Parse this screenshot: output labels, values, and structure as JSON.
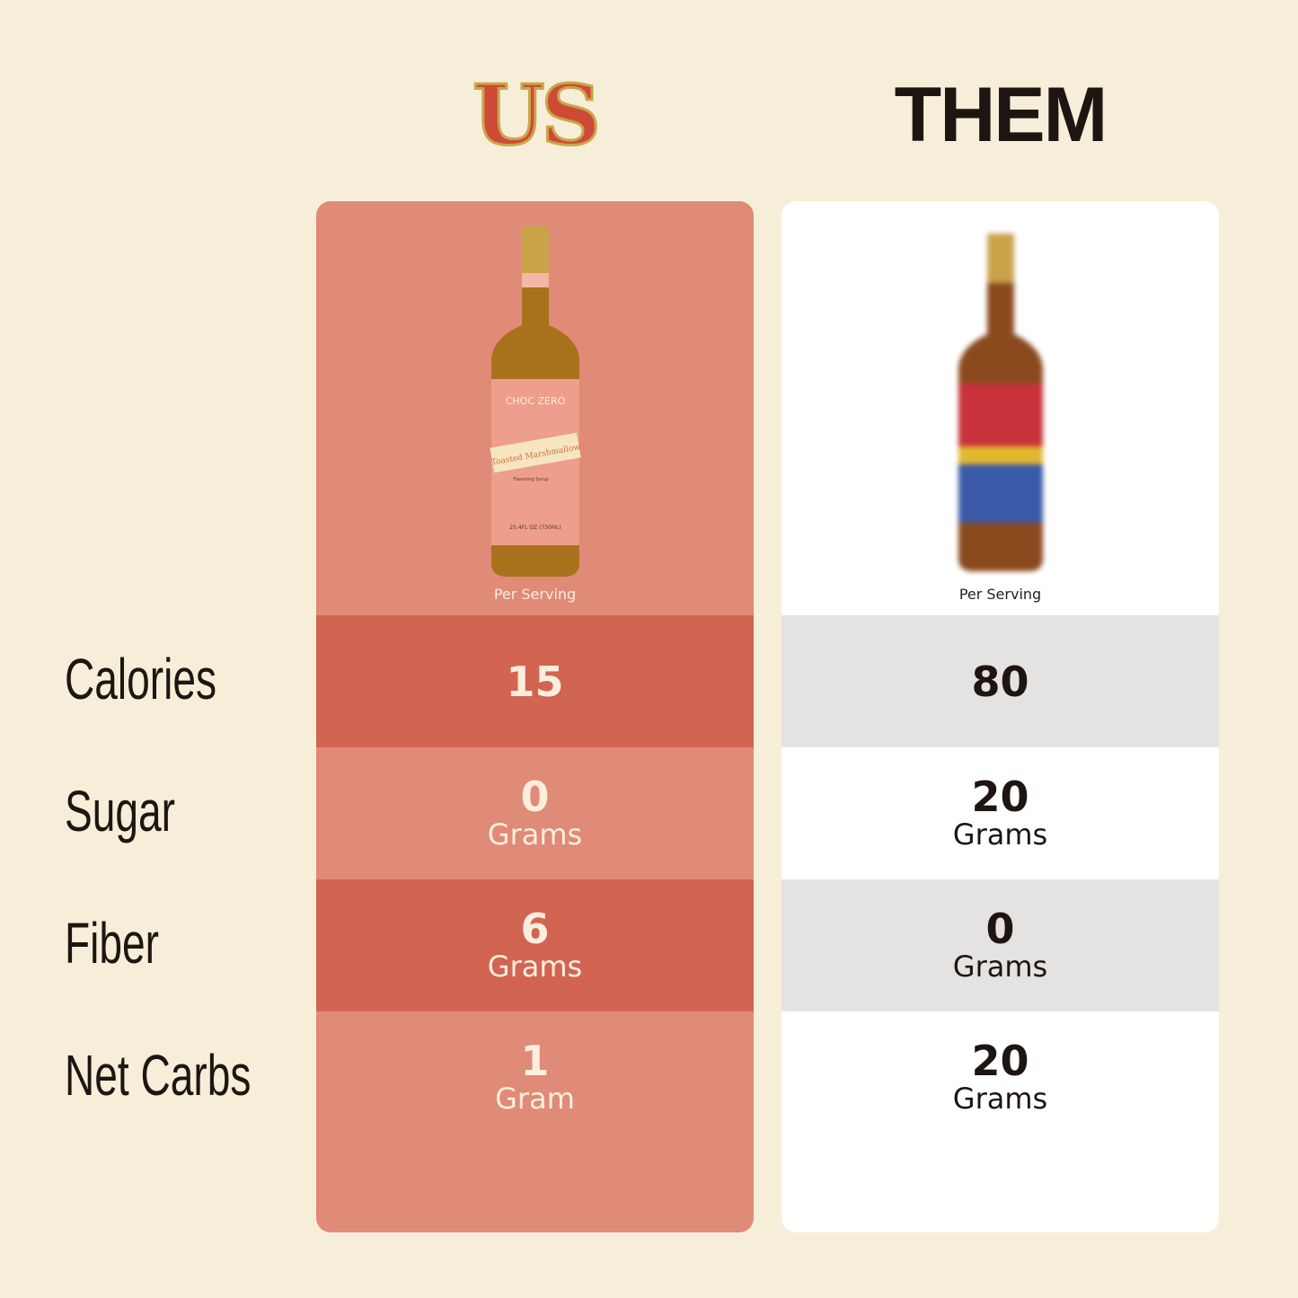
{
  "header": {
    "us": "US",
    "them": "THEM"
  },
  "columns": [
    {
      "key": "us",
      "per_serving": "Per Serving",
      "bottle_label": {
        "brand": "CHOC ZERO",
        "product": "Toasted Marshmallow",
        "subtitle": "Flavoring Syrup",
        "volume": "25.4FL OZ (750ML)"
      },
      "values": [
        {
          "num": "15",
          "unit": ""
        },
        {
          "num": "0",
          "unit": "Grams"
        },
        {
          "num": "6",
          "unit": "Grams"
        },
        {
          "num": "1",
          "unit": "Gram"
        }
      ]
    },
    {
      "key": "them",
      "per_serving": "Per Serving",
      "values": [
        {
          "num": "80",
          "unit": ""
        },
        {
          "num": "20",
          "unit": "Grams"
        },
        {
          "num": "0",
          "unit": "Grams"
        },
        {
          "num": "20",
          "unit": "Grams"
        }
      ]
    }
  ],
  "rows": [
    "Calories",
    "Sugar",
    "Fiber",
    "Net Carbs"
  ],
  "colors": {
    "background": "#f6eed8",
    "us_card": "#e08a78",
    "us_dark_row": "#d26452",
    "them_card": "#ffffff",
    "them_dark_row": "#e4e3e1",
    "text_dark": "#1e1513"
  }
}
